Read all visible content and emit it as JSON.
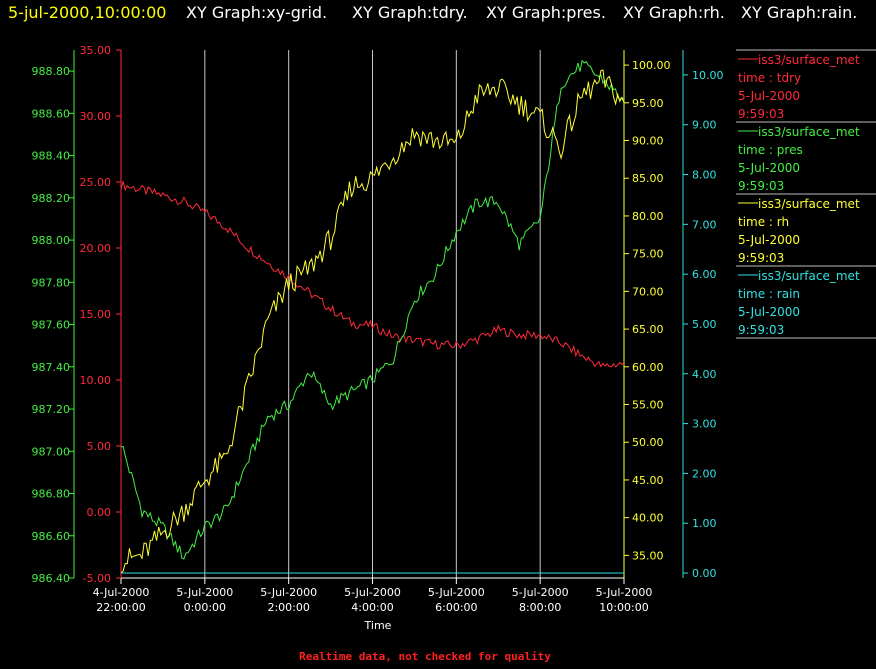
{
  "header": {
    "timestamp": "5-jul-2000,10:00:00",
    "graphs": [
      "XY Graph:xy-grid.",
      "XY Graph:tdry.",
      "XY Graph:pres.",
      "XY Graph:rh.",
      "XY Graph:rain."
    ]
  },
  "footer_note": "Realtime data, not checked for quality",
  "colors": {
    "background": "#000000",
    "timestamp": "#ffff00",
    "header_text": "#ffffff",
    "tdry": "#ff2a3a",
    "pres": "#44ee44",
    "rh": "#ffff33",
    "rain": "#33e0e0",
    "grid": "#c8c8c8",
    "axis": "#ffffff",
    "footer": "#ff2020"
  },
  "legend": [
    {
      "line1": "iss3/surface_met",
      "line2": "time : tdry",
      "line3": "5-Jul-2000",
      "line4": "9:59:03",
      "color": "#ff2a3a"
    },
    {
      "line1": "iss3/surface_met",
      "line2": "time : pres",
      "line3": "5-Jul-2000",
      "line4": "9:59:03",
      "color": "#44ee44"
    },
    {
      "line1": "iss3/surface_met",
      "line2": "time : rh",
      "line3": "5-Jul-2000",
      "line4": "9:59:03",
      "color": "#ffff33"
    },
    {
      "line1": "iss3/surface_met",
      "line2": "time : rain",
      "line3": "5-Jul-2000",
      "line4": "9:59:03",
      "color": "#33e0e0"
    }
  ],
  "chart_data": {
    "type": "line",
    "xlabel": "Time",
    "xlim": [
      0,
      12
    ],
    "x_ticks": [
      {
        "x": 0,
        "date": "4-Jul-2000",
        "time": "22:00:00"
      },
      {
        "x": 2,
        "date": "5-Jul-2000",
        "time": "0:00:00"
      },
      {
        "x": 4,
        "date": "5-Jul-2000",
        "time": "2:00:00"
      },
      {
        "x": 6,
        "date": "5-Jul-2000",
        "time": "4:00:00"
      },
      {
        "x": 8,
        "date": "5-Jul-2000",
        "time": "6:00:00"
      },
      {
        "x": 10,
        "date": "5-Jul-2000",
        "time": "8:00:00"
      },
      {
        "x": 12,
        "date": "5-Jul-2000",
        "time": "10:00:00"
      }
    ],
    "grid_x": true,
    "axes": {
      "pres": {
        "side": "left-outer",
        "ylim": [
          986.4,
          988.9
        ],
        "ticks": [
          "986.40",
          "986.60",
          "986.80",
          "987.00",
          "987.20",
          "987.40",
          "987.60",
          "987.80",
          "988.00",
          "988.20",
          "988.40",
          "988.60",
          "988.80"
        ]
      },
      "tdry": {
        "side": "left-inner",
        "ylim": [
          -5,
          35
        ],
        "ticks": [
          "-5.00",
          "0.00",
          "5.00",
          "10.00",
          "15.00",
          "20.00",
          "25.00",
          "30.00",
          "35.00"
        ]
      },
      "rh": {
        "side": "right-inner",
        "ylim": [
          32,
          102
        ],
        "ticks": [
          "35.00",
          "40.00",
          "45.00",
          "50.00",
          "55.00",
          "60.00",
          "65.00",
          "70.00",
          "75.00",
          "80.00",
          "85.00",
          "90.00",
          "95.00",
          "100.00"
        ]
      },
      "rain": {
        "side": "right-outer",
        "ylim": [
          -0.1,
          10.5
        ],
        "ticks": [
          "0.00",
          "1.00",
          "2.00",
          "3.00",
          "4.00",
          "5.00",
          "6.00",
          "7.00",
          "8.00",
          "9.00",
          "10.00"
        ]
      }
    },
    "x_hours": [
      0,
      0.5,
      1,
      1.5,
      2,
      2.5,
      3,
      3.5,
      4,
      4.5,
      5,
      5.5,
      6,
      6.5,
      7,
      7.5,
      8,
      8.5,
      9,
      9.5,
      10,
      10.5,
      11,
      11.5,
      12
    ],
    "series": [
      {
        "key": "tdry",
        "values": [
          24.8,
          24.4,
          24.0,
          23.5,
          22.7,
          21.6,
          20.1,
          18.9,
          17.8,
          16.6,
          15.4,
          14.3,
          14.1,
          13.3,
          13.0,
          12.7,
          12.6,
          13.1,
          13.8,
          13.4,
          13.4,
          12.8,
          11.8,
          11.0,
          11.3
        ]
      },
      {
        "key": "pres",
        "values": [
          987.04,
          986.72,
          986.64,
          986.5,
          986.64,
          986.72,
          986.94,
          987.16,
          987.22,
          987.38,
          987.22,
          987.28,
          987.34,
          987.44,
          987.72,
          987.84,
          988.04,
          988.18,
          988.18,
          987.98,
          988.1,
          988.74,
          988.83,
          988.76,
          988.66
        ]
      },
      {
        "key": "rh",
        "values": [
          34.2,
          35.0,
          38.0,
          41.0,
          45.0,
          48.0,
          57.0,
          66.0,
          71.0,
          73.0,
          77.0,
          84.0,
          85.0,
          88.0,
          91.0,
          90.0,
          89.5,
          96.0,
          97.0,
          95.0,
          93.0,
          89.0,
          96.0,
          98.0,
          95.0
        ]
      },
      {
        "key": "rain",
        "values": [
          0,
          0,
          0,
          0,
          0,
          0,
          0,
          0,
          0,
          0,
          0,
          0,
          0,
          0,
          0,
          0,
          0,
          0,
          0,
          0,
          0,
          0,
          0,
          0,
          0
        ]
      }
    ]
  }
}
